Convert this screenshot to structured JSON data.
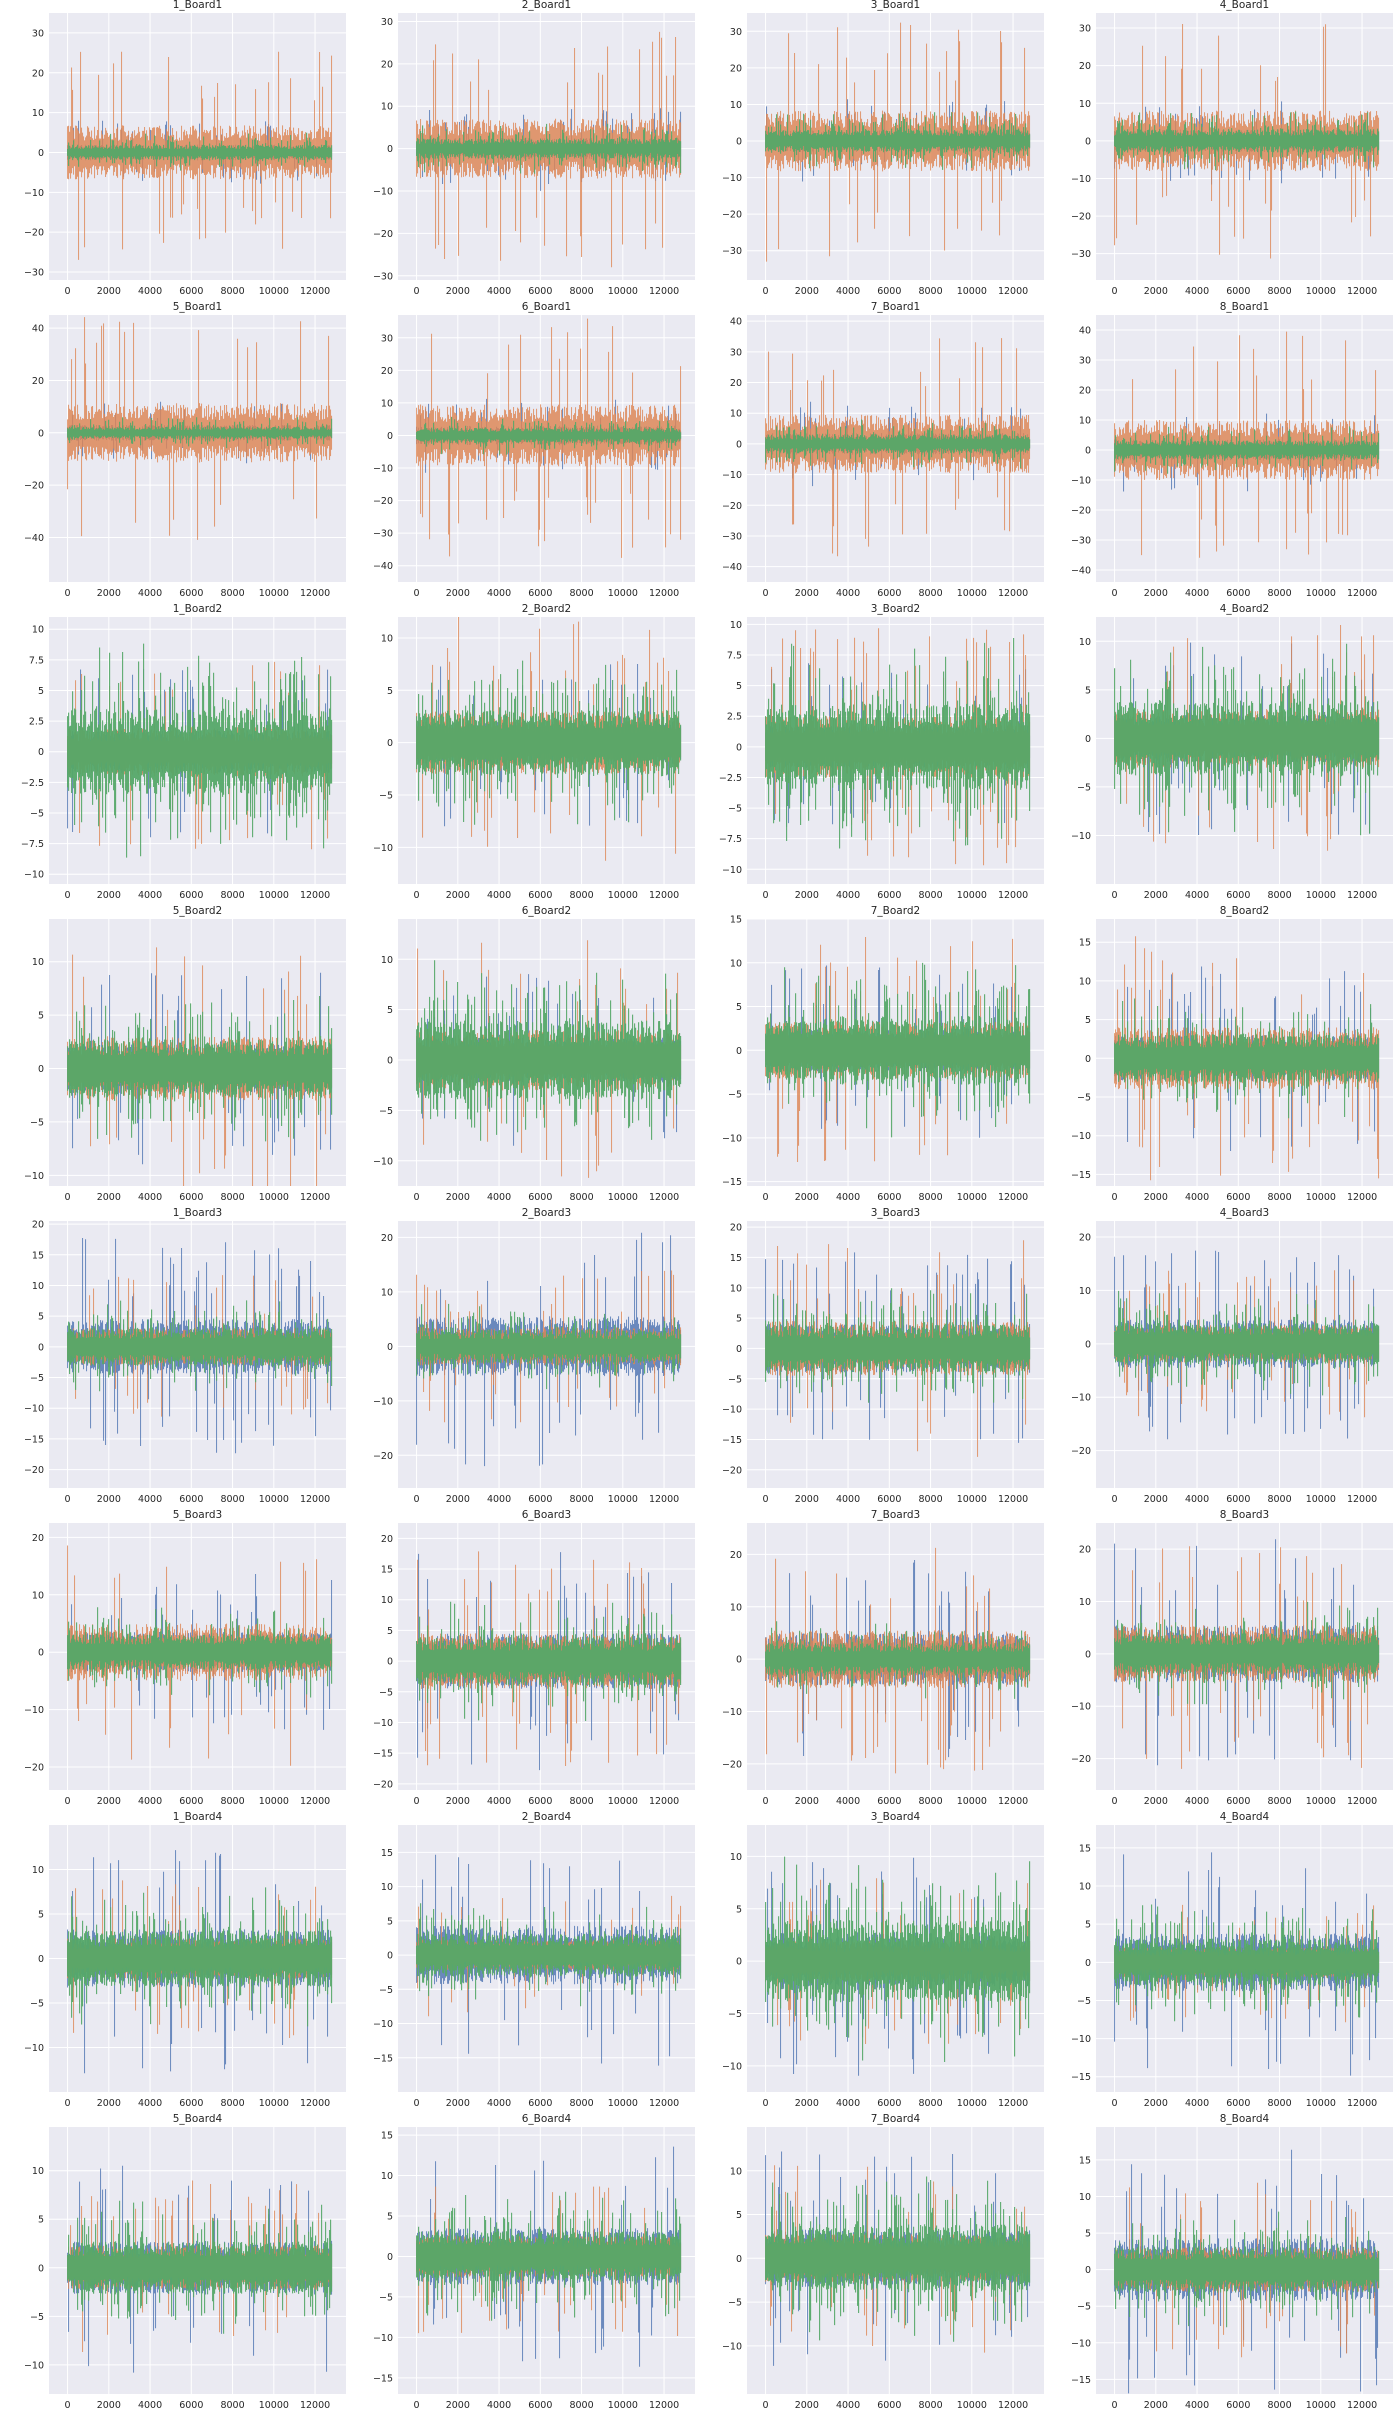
{
  "figure": {
    "grid": true,
    "background": "#eaeaf2",
    "grid_color": "#ffffff",
    "series_colors": [
      "#4c72b0",
      "#dd8452",
      "#55a868"
    ]
  },
  "chart_data": [
    {
      "type": "line",
      "title": "1_Board1",
      "xlim": [
        -900,
        13500
      ],
      "ylim": [
        -32,
        35
      ],
      "xticks": [
        0,
        2000,
        4000,
        6000,
        8000,
        10000,
        12000
      ],
      "yticks": [
        -30,
        -20,
        -10,
        0,
        10,
        20,
        30
      ],
      "amplitude": [
        8,
        27,
        5
      ],
      "n_points": 12800,
      "grid": true
    },
    {
      "type": "line",
      "title": "2_Board1",
      "xlim": [
        -900,
        13500
      ],
      "ylim": [
        -31,
        32
      ],
      "xticks": [
        0,
        2000,
        4000,
        6000,
        8000,
        10000,
        12000
      ],
      "yticks": [
        -30,
        -20,
        -10,
        0,
        10,
        20,
        30
      ],
      "amplitude": [
        10,
        28,
        6
      ],
      "n_points": 12800,
      "grid": true
    },
    {
      "type": "line",
      "title": "3_Board1",
      "xlim": [
        -900,
        13500
      ],
      "ylim": [
        -38,
        35
      ],
      "xticks": [
        0,
        2000,
        4000,
        6000,
        8000,
        10000,
        12000
      ],
      "yticks": [
        -30,
        -20,
        -10,
        0,
        10,
        20,
        30
      ],
      "amplitude": [
        12,
        33,
        8
      ],
      "n_points": 12800,
      "grid": true
    },
    {
      "type": "line",
      "title": "4_Board1",
      "xlim": [
        -900,
        13500
      ],
      "ylim": [
        -37,
        34
      ],
      "xticks": [
        0,
        2000,
        4000,
        6000,
        8000,
        10000,
        12000
      ],
      "yticks": [
        -30,
        -20,
        -10,
        0,
        10,
        20,
        30
      ],
      "amplitude": [
        12,
        32,
        8
      ],
      "n_points": 12800,
      "grid": true
    },
    {
      "type": "line",
      "title": "5_Board1",
      "xlim": [
        -900,
        13500
      ],
      "ylim": [
        -57,
        45
      ],
      "xticks": [
        0,
        2000,
        4000,
        6000,
        8000,
        10000,
        12000
      ],
      "yticks": [
        -40,
        -20,
        0,
        20,
        40
      ],
      "amplitude": [
        12,
        45,
        6
      ],
      "n_points": 12800,
      "grid": true
    },
    {
      "type": "line",
      "title": "6_Board1",
      "xlim": [
        -900,
        13500
      ],
      "ylim": [
        -45,
        37
      ],
      "xticks": [
        0,
        2000,
        4000,
        6000,
        8000,
        10000,
        12000
      ],
      "yticks": [
        -40,
        -30,
        -20,
        -10,
        0,
        10,
        20,
        30
      ],
      "amplitude": [
        12,
        38,
        6
      ],
      "n_points": 12800,
      "grid": true
    },
    {
      "type": "line",
      "title": "7_Board1",
      "xlim": [
        -900,
        13500
      ],
      "ylim": [
        -45,
        42
      ],
      "xticks": [
        0,
        2000,
        4000,
        6000,
        8000,
        10000,
        12000
      ],
      "yticks": [
        -40,
        -30,
        -20,
        -10,
        0,
        10,
        20,
        30,
        40
      ],
      "amplitude": [
        14,
        38,
        8
      ],
      "n_points": 12800,
      "grid": true
    },
    {
      "type": "line",
      "title": "8_Board1",
      "xlim": [
        -900,
        13500
      ],
      "ylim": [
        -44,
        45
      ],
      "xticks": [
        0,
        2000,
        4000,
        6000,
        8000,
        10000,
        12000
      ],
      "yticks": [
        -40,
        -30,
        -20,
        -10,
        0,
        10,
        20,
        30,
        40
      ],
      "amplitude": [
        14,
        40,
        8
      ],
      "n_points": 12800,
      "grid": true
    },
    {
      "type": "line",
      "title": "1_Board2",
      "xlim": [
        -900,
        13500
      ],
      "ylim": [
        -10.8,
        11
      ],
      "xticks": [
        0,
        2000,
        4000,
        6000,
        8000,
        10000,
        12000
      ],
      "yticks": [
        -10,
        -7.5,
        -5,
        -2.5,
        0,
        2.5,
        5,
        7.5,
        10
      ],
      "amplitude": [
        7,
        8,
        9
      ],
      "n_points": 12800,
      "grid": true
    },
    {
      "type": "line",
      "title": "2_Board2",
      "xlim": [
        -900,
        13500
      ],
      "ylim": [
        -13.5,
        12
      ],
      "xticks": [
        0,
        2000,
        4000,
        6000,
        8000,
        10000,
        12000
      ],
      "yticks": [
        -10,
        -5,
        0,
        5,
        10
      ],
      "amplitude": [
        8,
        12,
        8
      ],
      "n_points": 12800,
      "grid": true
    },
    {
      "type": "line",
      "title": "3_Board2",
      "xlim": [
        -900,
        13500
      ],
      "ylim": [
        -11.2,
        10.6
      ],
      "xticks": [
        0,
        2000,
        4000,
        6000,
        8000,
        10000,
        12000
      ],
      "yticks": [
        -10,
        -7.5,
        -5,
        -2.5,
        0,
        2.5,
        5,
        7.5,
        10
      ],
      "amplitude": [
        7,
        10,
        9
      ],
      "n_points": 12800,
      "grid": true
    },
    {
      "type": "line",
      "title": "4_Board2",
      "xlim": [
        -900,
        13500
      ],
      "ylim": [
        -15,
        12.5
      ],
      "xticks": [
        0,
        2000,
        4000,
        6000,
        8000,
        10000,
        12000
      ],
      "yticks": [
        -10,
        -5,
        0,
        5,
        10
      ],
      "amplitude": [
        10,
        12,
        10
      ],
      "n_points": 12800,
      "grid": true
    },
    {
      "type": "line",
      "title": "5_Board2",
      "xlim": [
        -900,
        13500
      ],
      "ylim": [
        -11,
        14
      ],
      "xticks": [
        0,
        2000,
        4000,
        6000,
        8000,
        10000,
        12000
      ],
      "yticks": [
        -10,
        -5,
        0,
        5,
        10
      ],
      "amplitude": [
        9,
        12,
        7
      ],
      "n_points": 12800,
      "grid": true
    },
    {
      "type": "line",
      "title": "6_Board2",
      "xlim": [
        -900,
        13500
      ],
      "ylim": [
        -12.5,
        14
      ],
      "xticks": [
        0,
        2000,
        4000,
        6000,
        8000,
        10000,
        12000
      ],
      "yticks": [
        -10,
        -5,
        0,
        5,
        10
      ],
      "amplitude": [
        9,
        12,
        10
      ],
      "n_points": 12800,
      "grid": true
    },
    {
      "type": "line",
      "title": "7_Board2",
      "xlim": [
        -900,
        13500
      ],
      "ylim": [
        -15.5,
        15
      ],
      "xticks": [
        0,
        2000,
        4000,
        6000,
        8000,
        10000,
        12000
      ],
      "yticks": [
        -15,
        -10,
        -5,
        0,
        5,
        10,
        15
      ],
      "amplitude": [
        10,
        13,
        10
      ],
      "n_points": 12800,
      "grid": true
    },
    {
      "type": "line",
      "title": "8_Board2",
      "xlim": [
        -900,
        13500
      ],
      "ylim": [
        -16.5,
        18
      ],
      "xticks": [
        0,
        2000,
        4000,
        6000,
        8000,
        10000,
        12000
      ],
      "yticks": [
        -15,
        -10,
        -5,
        0,
        5,
        10,
        15
      ],
      "amplitude": [
        12,
        16,
        8
      ],
      "n_points": 12800,
      "grid": true
    },
    {
      "type": "line",
      "title": "1_Board3",
      "xlim": [
        -900,
        13500
      ],
      "ylim": [
        -23,
        20.5
      ],
      "xticks": [
        0,
        2000,
        4000,
        6000,
        8000,
        10000,
        12000
      ],
      "yticks": [
        -20,
        -15,
        -10,
        -5,
        0,
        5,
        10,
        15,
        20
      ],
      "amplitude": [
        18,
        12,
        8
      ],
      "n_points": 12800,
      "grid": true
    },
    {
      "type": "line",
      "title": "2_Board3",
      "xlim": [
        -900,
        13500
      ],
      "ylim": [
        -26,
        23
      ],
      "xticks": [
        0,
        2000,
        4000,
        6000,
        8000,
        10000,
        12000
      ],
      "yticks": [
        -20,
        -10,
        0,
        10,
        20
      ],
      "amplitude": [
        22,
        14,
        8
      ],
      "n_points": 12800,
      "grid": true
    },
    {
      "type": "line",
      "title": "3_Board3",
      "xlim": [
        -900,
        13500
      ],
      "ylim": [
        -23,
        21
      ],
      "xticks": [
        0,
        2000,
        4000,
        6000,
        8000,
        10000,
        12000
      ],
      "yticks": [
        -20,
        -15,
        -10,
        -5,
        0,
        5,
        10,
        15,
        20
      ],
      "amplitude": [
        16,
        18,
        10
      ],
      "n_points": 12800,
      "grid": true
    },
    {
      "type": "line",
      "title": "4_Board3",
      "xlim": [
        -900,
        13500
      ],
      "ylim": [
        -27,
        23
      ],
      "xticks": [
        0,
        2000,
        4000,
        6000,
        8000,
        10000,
        12000
      ],
      "yticks": [
        -20,
        -10,
        0,
        10,
        20
      ],
      "amplitude": [
        18,
        14,
        10
      ],
      "n_points": 12800,
      "grid": true
    },
    {
      "type": "line",
      "title": "5_Board3",
      "xlim": [
        -900,
        13500
      ],
      "ylim": [
        -24,
        22.5
      ],
      "xticks": [
        0,
        2000,
        4000,
        6000,
        8000,
        10000,
        12000
      ],
      "yticks": [
        -20,
        -10,
        0,
        10,
        20
      ],
      "amplitude": [
        14,
        20,
        8
      ],
      "n_points": 12800,
      "grid": true
    },
    {
      "type": "line",
      "title": "6_Board3",
      "xlim": [
        -900,
        13500
      ],
      "ylim": [
        -21,
        22.5
      ],
      "xticks": [
        0,
        2000,
        4000,
        6000,
        8000,
        10000,
        12000
      ],
      "yticks": [
        -20,
        -15,
        -10,
        -5,
        0,
        5,
        10,
        15,
        20
      ],
      "amplitude": [
        18,
        18,
        10
      ],
      "n_points": 12800,
      "grid": true
    },
    {
      "type": "line",
      "title": "7_Board3",
      "xlim": [
        -900,
        13500
      ],
      "ylim": [
        -25,
        26
      ],
      "xticks": [
        0,
        2000,
        4000,
        6000,
        8000,
        10000,
        12000
      ],
      "yticks": [
        -20,
        -10,
        0,
        10,
        20
      ],
      "amplitude": [
        20,
        22,
        8
      ],
      "n_points": 12800,
      "grid": true
    },
    {
      "type": "line",
      "title": "8_Board3",
      "xlim": [
        -900,
        13500
      ],
      "ylim": [
        -26,
        25
      ],
      "xticks": [
        0,
        2000,
        4000,
        6000,
        8000,
        10000,
        12000
      ],
      "yticks": [
        -20,
        -10,
        0,
        10,
        20
      ],
      "amplitude": [
        22,
        22,
        10
      ],
      "n_points": 12800,
      "grid": true
    },
    {
      "type": "line",
      "title": "1_Board4",
      "xlim": [
        -900,
        13500
      ],
      "ylim": [
        -15,
        15
      ],
      "xticks": [
        0,
        2000,
        4000,
        6000,
        8000,
        10000,
        12000
      ],
      "yticks": [
        -10,
        -5,
        0,
        5,
        10
      ],
      "amplitude": [
        13,
        9,
        8
      ],
      "n_points": 12800,
      "grid": true
    },
    {
      "type": "line",
      "title": "2_Board4",
      "xlim": [
        -900,
        13500
      ],
      "ylim": [
        -20,
        19
      ],
      "xticks": [
        0,
        2000,
        4000,
        6000,
        8000,
        10000,
        12000
      ],
      "yticks": [
        -15,
        -10,
        -5,
        0,
        5,
        10,
        15
      ],
      "amplitude": [
        17,
        9,
        8
      ],
      "n_points": 12800,
      "grid": true
    },
    {
      "type": "line",
      "title": "3_Board4",
      "xlim": [
        -900,
        13500
      ],
      "ylim": [
        -12.5,
        13
      ],
      "xticks": [
        0,
        2000,
        4000,
        6000,
        8000,
        10000,
        12000
      ],
      "yticks": [
        -10,
        -5,
        0,
        5,
        10
      ],
      "amplitude": [
        11,
        8,
        10
      ],
      "n_points": 12800,
      "grid": true
    },
    {
      "type": "line",
      "title": "4_Board4",
      "xlim": [
        -900,
        13500
      ],
      "ylim": [
        -17,
        18
      ],
      "xticks": [
        0,
        2000,
        4000,
        6000,
        8000,
        10000,
        12000
      ],
      "yticks": [
        -15,
        -10,
        -5,
        0,
        5,
        10,
        15
      ],
      "amplitude": [
        15,
        8,
        8
      ],
      "n_points": 12800,
      "grid": true
    },
    {
      "type": "line",
      "title": "5_Board4",
      "xlim": [
        -900,
        13500
      ],
      "ylim": [
        -13,
        14.5
      ],
      "xticks": [
        0,
        2000,
        4000,
        6000,
        8000,
        10000,
        12000
      ],
      "yticks": [
        -10,
        -5,
        0,
        5,
        10
      ],
      "amplitude": [
        11,
        9,
        7
      ],
      "n_points": 12800,
      "grid": true
    },
    {
      "type": "line",
      "title": "6_Board4",
      "xlim": [
        -900,
        13500
      ],
      "ylim": [
        -17,
        16
      ],
      "xticks": [
        0,
        2000,
        4000,
        6000,
        8000,
        10000,
        12000
      ],
      "yticks": [
        -15,
        -10,
        -5,
        0,
        5,
        10,
        15
      ],
      "amplitude": [
        14,
        10,
        8
      ],
      "n_points": 12800,
      "grid": true
    },
    {
      "type": "line",
      "title": "7_Board4",
      "xlim": [
        -900,
        13500
      ],
      "ylim": [
        -15.5,
        15
      ],
      "xticks": [
        0,
        2000,
        4000,
        6000,
        8000,
        10000,
        12000
      ],
      "yticks": [
        -10,
        -5,
        0,
        5,
        10
      ],
      "amplitude": [
        13,
        11,
        10
      ],
      "n_points": 12800,
      "grid": true
    },
    {
      "type": "line",
      "title": "8_Board4",
      "xlim": [
        -900,
        13500
      ],
      "ylim": [
        -17,
        19.5
      ],
      "xticks": [
        0,
        2000,
        4000,
        6000,
        8000,
        10000,
        12000
      ],
      "yticks": [
        -15,
        -10,
        -5,
        0,
        5,
        10,
        15
      ],
      "amplitude": [
        17,
        12,
        8
      ],
      "n_points": 12800,
      "grid": true
    }
  ]
}
